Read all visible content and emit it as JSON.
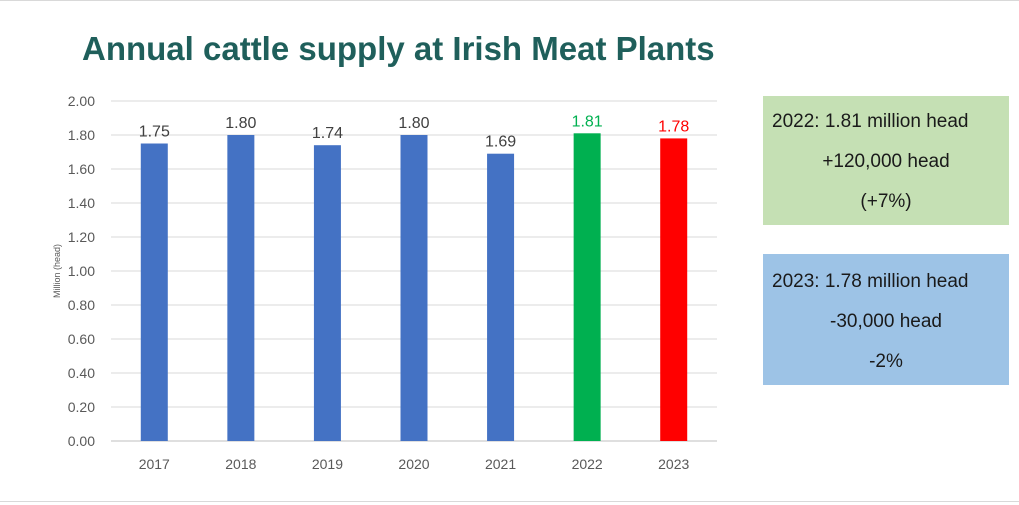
{
  "title": "Annual cattle supply at Irish Meat Plants",
  "chart_data": {
    "type": "bar",
    "categories": [
      "2017",
      "2018",
      "2019",
      "2020",
      "2021",
      "2022",
      "2023"
    ],
    "values": [
      1.75,
      1.8,
      1.74,
      1.8,
      1.69,
      1.81,
      1.78
    ],
    "data_labels": [
      "1.75",
      "1.80",
      "1.74",
      "1.80",
      "1.69",
      "1.81",
      "1.78"
    ],
    "bar_colors": [
      "#4472c4",
      "#4472c4",
      "#4472c4",
      "#4472c4",
      "#4472c4",
      "#00b050",
      "#ff0000"
    ],
    "label_colors": [
      "#404040",
      "#404040",
      "#404040",
      "#404040",
      "#404040",
      "#00b050",
      "#ff0000"
    ],
    "ylabel": "Million (head)",
    "ylim": [
      0,
      2.0
    ],
    "yticks": [
      "0.00",
      "0.20",
      "0.40",
      "0.60",
      "0.80",
      "1.00",
      "1.20",
      "1.40",
      "1.60",
      "1.80",
      "2.00"
    ],
    "grid": true
  },
  "boxes": {
    "y2022": {
      "line1": "2022: 1.81 million head",
      "line2": "+120,000 head",
      "line3": "(+7%)"
    },
    "y2023": {
      "line1": "2023: 1.78 million head",
      "line2": "-30,000 head",
      "line3": "-2%"
    }
  },
  "colors": {
    "title": "#1f5f5b",
    "box_2022": "#c5e0b4",
    "box_2023": "#9dc3e6"
  }
}
